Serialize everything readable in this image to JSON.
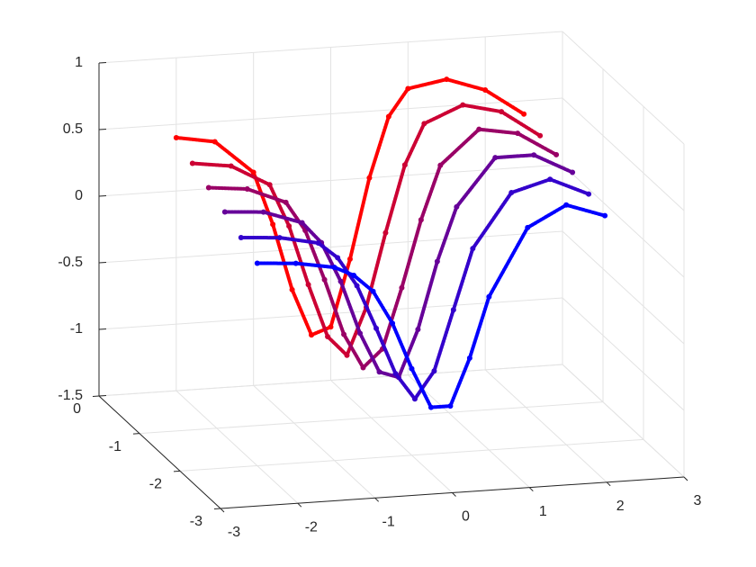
{
  "chart_data": {
    "type": "scatter3d",
    "x": [
      -2,
      -1.5,
      -1,
      -0.75,
      -0.5,
      -0.25,
      0,
      0.25,
      0.5,
      0.75,
      1,
      1.5,
      2,
      2.5
    ],
    "xlim": [
      -3,
      3
    ],
    "xticks": [
      -3,
      -2,
      -1,
      0,
      1,
      2,
      3
    ],
    "ylim": [
      -3,
      0
    ],
    "yticks": [
      -3,
      -2,
      -1,
      0
    ],
    "zlim": [
      -1.5,
      1
    ],
    "zticks": [
      -1.5,
      -1,
      -0.5,
      0,
      0.5,
      1
    ],
    "grid": true,
    "series": [
      {
        "color": "#ff0000",
        "y": 0,
        "z": [
          0.4,
          0.35,
          0.1,
          -0.3,
          -0.8,
          -1.15,
          -1.1,
          -0.6,
          0.0,
          0.45,
          0.65,
          0.7,
          0.6,
          0.4
        ]
      },
      {
        "color": "#cc0033",
        "y": -0.4,
        "z": [
          0.32,
          0.28,
          0.12,
          -0.2,
          -0.65,
          -1.05,
          -1.2,
          -0.85,
          -0.3,
          0.2,
          0.5,
          0.62,
          0.55,
          0.35
        ]
      },
      {
        "color": "#990066",
        "y": -0.8,
        "z": [
          0.25,
          0.22,
          0.1,
          -0.12,
          -0.5,
          -0.92,
          -1.18,
          -1.05,
          -0.6,
          -0.1,
          0.3,
          0.55,
          0.5,
          0.32
        ]
      },
      {
        "color": "#660099",
        "y": -1.2,
        "z": [
          0.18,
          0.16,
          0.06,
          -0.1,
          -0.4,
          -0.8,
          -1.1,
          -1.15,
          -0.8,
          -0.3,
          0.1,
          0.45,
          0.45,
          0.3
        ]
      },
      {
        "color": "#3300cc",
        "y": -1.6,
        "z": [
          0.1,
          0.08,
          0.02,
          -0.1,
          -0.32,
          -0.65,
          -1.0,
          -1.2,
          -1.0,
          -0.55,
          -0.1,
          0.3,
          0.38,
          0.25
        ]
      },
      {
        "color": "#0000ff",
        "y": -2.0,
        "z": [
          0.02,
          0.0,
          -0.05,
          -0.12,
          -0.25,
          -0.5,
          -0.85,
          -1.15,
          -1.15,
          -0.8,
          -0.35,
          0.15,
          0.3,
          0.2
        ]
      }
    ]
  }
}
